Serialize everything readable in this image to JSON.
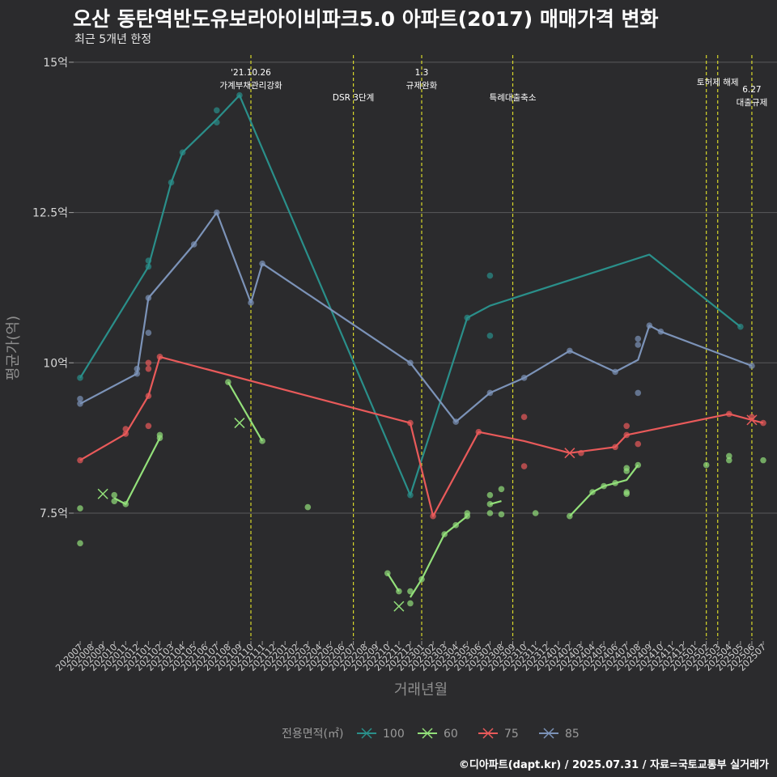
{
  "title": "오산 동탄역반도유보라아이비파크5.0 아파트(2017) 매매가격 변화",
  "subtitle": "최근 5개년 한정",
  "caption": "©디아파트(dapt.kr) / 2025.07.31 / 자료=국토교통부 실거래가",
  "chart_data": {
    "type": "line",
    "xlabel": "거래년월",
    "ylabel": "평균가(억)",
    "ylim": [
      5.4,
      15.2
    ],
    "yticks": [
      7.5,
      10,
      12.5,
      15
    ],
    "ytick_labels": [
      "7.5억",
      "10억",
      "12.5억",
      "15억"
    ],
    "categories": [
      "202007",
      "202008",
      "202009",
      "202010",
      "202011",
      "202012",
      "202101",
      "202102",
      "202103",
      "202104",
      "202105",
      "202106",
      "202107",
      "202108",
      "202109",
      "202110",
      "202111",
      "202112",
      "202201",
      "202202",
      "202203",
      "202204",
      "202205",
      "202206",
      "202207",
      "202208",
      "202209",
      "202210",
      "202211",
      "202212",
      "202301",
      "202302",
      "202303",
      "202304",
      "202305",
      "202306",
      "202307",
      "202308",
      "202309",
      "202310",
      "202311",
      "202312",
      "202401",
      "202402",
      "202403",
      "202404",
      "202405",
      "202406",
      "202407",
      "202408",
      "202409",
      "202410",
      "202411",
      "202412",
      "202501",
      "202502",
      "202503",
      "202504",
      "202505",
      "202506",
      "202507"
    ],
    "grid": true,
    "legend": {
      "title": "전용면적(㎡)",
      "position": "bottom"
    },
    "events": [
      {
        "x": "202110",
        "lines": [
          "'21.10.26",
          "가계부채관리강화"
        ],
        "row": 0
      },
      {
        "x": "202207",
        "lines": [
          "DSR 3단계"
        ],
        "row": 2
      },
      {
        "x": "202301",
        "lines": [
          "1.3",
          "규제완화"
        ],
        "row": 0
      },
      {
        "x": "202309",
        "lines": [
          "특례대출축소"
        ],
        "row": 2
      },
      {
        "x": "202502",
        "lines": [],
        "row": 0
      },
      {
        "x": "202503",
        "lines": [
          "토허제 해제"
        ],
        "row": 1
      },
      {
        "x": "202506",
        "lines": [
          "6.27",
          "대출규제"
        ],
        "row": 3
      }
    ],
    "series": [
      {
        "name": "100",
        "color": "#2a8f8a",
        "line": [
          [
            "202007",
            9.75
          ],
          [
            "202101",
            11.6
          ],
          [
            "202103",
            13.0
          ],
          [
            "202104",
            13.5
          ],
          [
            "202107",
            14.05
          ],
          [
            "202109",
            14.45
          ],
          [
            "202212",
            7.8
          ],
          [
            "202305",
            10.75
          ],
          [
            "202307",
            10.95
          ],
          [
            "202409",
            11.8
          ],
          [
            "202505",
            10.6
          ]
        ],
        "points": [
          [
            "202007",
            9.75
          ],
          [
            "202101",
            11.7
          ],
          [
            "202101",
            11.6
          ],
          [
            "202103",
            13.0
          ],
          [
            "202104",
            13.5
          ],
          [
            "202107",
            14.2
          ],
          [
            "202107",
            14.0
          ],
          [
            "202109",
            14.45
          ],
          [
            "202212",
            7.8
          ],
          [
            "202305",
            10.75
          ],
          [
            "202307",
            11.45
          ],
          [
            "202307",
            10.45
          ],
          [
            "202505",
            10.6
          ]
        ],
        "crosses": []
      },
      {
        "name": "60",
        "color": "#93e07a",
        "line": [
          [
            "202010",
            7.75
          ],
          [
            "202011",
            7.65
          ],
          [
            "202102",
            8.75
          ],
          null,
          [
            "202108",
            9.68
          ],
          [
            "202111",
            8.7
          ],
          null,
          [
            "202210",
            6.5
          ],
          [
            "202211",
            6.2
          ],
          null,
          [
            "202212",
            6.1
          ],
          [
            "202301",
            6.4
          ],
          [
            "202303",
            7.15
          ],
          [
            "202304",
            7.3
          ],
          [
            "202305",
            7.45
          ],
          null,
          [
            "202307",
            7.65
          ],
          [
            "202308",
            7.7
          ],
          null,
          [
            "202402",
            7.45
          ],
          [
            "202404",
            7.85
          ],
          [
            "202405",
            7.95
          ],
          [
            "202406",
            8.0
          ],
          [
            "202407",
            8.05
          ],
          [
            "202408",
            8.3
          ]
        ],
        "points": [
          [
            "202007",
            7.58
          ],
          [
            "202007",
            7.0
          ],
          [
            "202010",
            7.8
          ],
          [
            "202010",
            7.7
          ],
          [
            "202011",
            7.65
          ],
          [
            "202102",
            8.8
          ],
          [
            "202102",
            8.75
          ],
          [
            "202108",
            9.68
          ],
          [
            "202111",
            8.7
          ],
          [
            "202203",
            7.6
          ],
          [
            "202210",
            6.5
          ],
          [
            "202211",
            6.2
          ],
          [
            "202212",
            6.2
          ],
          [
            "202212",
            6.0
          ],
          [
            "202301",
            6.4
          ],
          [
            "202303",
            7.15
          ],
          [
            "202304",
            7.3
          ],
          [
            "202305",
            7.5
          ],
          [
            "202305",
            7.45
          ],
          [
            "202307",
            7.8
          ],
          [
            "202307",
            7.65
          ],
          [
            "202307",
            7.5
          ],
          [
            "202308",
            7.9
          ],
          [
            "202308",
            7.48
          ],
          [
            "202311",
            7.5
          ],
          [
            "202402",
            7.45
          ],
          [
            "202404",
            7.85
          ],
          [
            "202405",
            7.95
          ],
          [
            "202406",
            8.0
          ],
          [
            "202407",
            8.25
          ],
          [
            "202407",
            8.2
          ],
          [
            "202407",
            7.85
          ],
          [
            "202407",
            7.82
          ],
          [
            "202408",
            8.3
          ],
          [
            "202502",
            8.3
          ],
          [
            "202504",
            8.45
          ],
          [
            "202504",
            8.38
          ],
          [
            "202507",
            8.38
          ]
        ],
        "crosses": [
          [
            "202009",
            7.82
          ],
          [
            "202109",
            9.0
          ],
          [
            "202211",
            5.95
          ]
        ]
      },
      {
        "name": "75",
        "color": "#e95a5a",
        "line": [
          [
            "202007",
            8.38
          ],
          [
            "202011",
            8.82
          ],
          [
            "202101",
            9.45
          ],
          [
            "202102",
            10.1
          ],
          [
            "202212",
            9.0
          ],
          [
            "202302",
            7.45
          ],
          [
            "202306",
            8.85
          ],
          [
            "202310",
            8.7
          ],
          [
            "202402",
            8.5
          ],
          [
            "202406",
            8.6
          ],
          [
            "202407",
            8.8
          ],
          [
            "202504",
            9.15
          ],
          [
            "202506",
            9.05
          ],
          [
            "202507",
            9.0
          ]
        ],
        "points": [
          [
            "202007",
            8.38
          ],
          [
            "202011",
            8.9
          ],
          [
            "202011",
            8.82
          ],
          [
            "202101",
            10.0
          ],
          [
            "202101",
            9.9
          ],
          [
            "202101",
            9.45
          ],
          [
            "202101",
            8.95
          ],
          [
            "202102",
            10.1
          ],
          [
            "202212",
            9.0
          ],
          [
            "202302",
            7.45
          ],
          [
            "202306",
            8.85
          ],
          [
            "202310",
            9.1
          ],
          [
            "202310",
            8.28
          ],
          [
            "202403",
            8.5
          ],
          [
            "202406",
            8.6
          ],
          [
            "202407",
            8.95
          ],
          [
            "202407",
            8.8
          ],
          [
            "202408",
            8.65
          ],
          [
            "202504",
            9.15
          ],
          [
            "202506",
            9.1
          ],
          [
            "202507",
            9.0
          ]
        ],
        "crosses": [
          [
            "202402",
            8.5
          ],
          [
            "202506",
            9.05
          ]
        ]
      },
      {
        "name": "85",
        "color": "#7c93b8",
        "line": [
          [
            "202007",
            9.32
          ],
          [
            "202012",
            9.82
          ],
          [
            "202101",
            11.08
          ],
          [
            "202105",
            11.97
          ],
          [
            "202107",
            12.5
          ],
          [
            "202110",
            11.0
          ],
          [
            "202111",
            11.65
          ],
          [
            "202212",
            10.0
          ],
          [
            "202304",
            9.02
          ],
          [
            "202307",
            9.5
          ],
          [
            "202310",
            9.75
          ],
          [
            "202402",
            10.2
          ],
          [
            "202406",
            9.85
          ],
          [
            "202408",
            10.05
          ],
          [
            "202409",
            10.62
          ],
          [
            "202410",
            10.52
          ],
          [
            "202506",
            9.95
          ]
        ],
        "points": [
          [
            "202007",
            9.4
          ],
          [
            "202007",
            9.32
          ],
          [
            "202012",
            9.9
          ],
          [
            "202012",
            9.82
          ],
          [
            "202101",
            11.08
          ],
          [
            "202101",
            10.5
          ],
          [
            "202105",
            11.97
          ],
          [
            "202107",
            12.5
          ],
          [
            "202110",
            11.0
          ],
          [
            "202111",
            11.65
          ],
          [
            "202212",
            10.0
          ],
          [
            "202304",
            9.02
          ],
          [
            "202307",
            9.5
          ],
          [
            "202310",
            9.75
          ],
          [
            "202402",
            10.2
          ],
          [
            "202406",
            9.85
          ],
          [
            "202408",
            10.4
          ],
          [
            "202408",
            10.3
          ],
          [
            "202408",
            9.5
          ],
          [
            "202409",
            10.62
          ],
          [
            "202410",
            10.52
          ],
          [
            "202506",
            9.95
          ]
        ],
        "crosses": []
      }
    ]
  }
}
